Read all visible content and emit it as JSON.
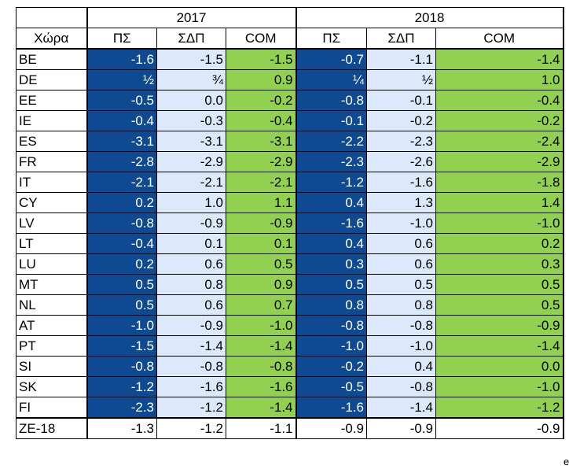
{
  "header": {
    "years": [
      "2017",
      "2018"
    ],
    "country_label": "Χώρα",
    "columns": [
      "ΠΣ",
      "ΣΔΠ",
      "COM",
      "ΠΣ",
      "ΣΔΠ",
      "COM"
    ]
  },
  "rows": [
    {
      "country": "BE",
      "values": [
        "-1.6",
        "-1.5",
        "-1.5",
        "-0.7",
        "-1.1",
        "-1.4"
      ]
    },
    {
      "country": "DE",
      "values": [
        "½",
        "¾",
        "0.9",
        "¼",
        "½",
        "1.0"
      ]
    },
    {
      "country": "EE",
      "values": [
        "-0.5",
        "0.0",
        "-0.2",
        "-0.8",
        "-0.1",
        "-0.4"
      ]
    },
    {
      "country": "IE",
      "values": [
        "-0.4",
        "-0.3",
        "-0.4",
        "-0.1",
        "-0.2",
        "-0.2"
      ]
    },
    {
      "country": "ES",
      "values": [
        "-3.1",
        "-3.1",
        "-3.1",
        "-2.2",
        "-2.3",
        "-2.4"
      ]
    },
    {
      "country": "FR",
      "values": [
        "-2.8",
        "-2.9",
        "-2.9",
        "-2.3",
        "-2.6",
        "-2.9"
      ]
    },
    {
      "country": "IT",
      "values": [
        "-2.1",
        "-2.1",
        "-2.1",
        "-1.2",
        "-1.6",
        "-1.8"
      ]
    },
    {
      "country": "CY",
      "values": [
        "0.2",
        "1.0",
        "1.1",
        "0.4",
        "1.3",
        "1.4"
      ]
    },
    {
      "country": "LV",
      "values": [
        "-0.8",
        "-0.9",
        "-0.9",
        "-1.6",
        "-1.0",
        "-1.0"
      ]
    },
    {
      "country": "LT",
      "values": [
        "-0.4",
        "0.1",
        "0.1",
        "0.4",
        "0.6",
        "0.2"
      ]
    },
    {
      "country": "LU",
      "values": [
        "0.2",
        "0.6",
        "0.5",
        "0.3",
        "0.6",
        "0.3"
      ]
    },
    {
      "country": "MT",
      "values": [
        "0.5",
        "0.8",
        "0.9",
        "0.5",
        "0.5",
        "0.5"
      ]
    },
    {
      "country": "NL",
      "values": [
        "0.5",
        "0.6",
        "0.7",
        "0.8",
        "0.8",
        "0.5"
      ]
    },
    {
      "country": "AT",
      "values": [
        "-1.0",
        "-0.9",
        "-1.0",
        "-0.8",
        "-0.8",
        "-0.9"
      ]
    },
    {
      "country": "PT",
      "values": [
        "-1.5",
        "-1.4",
        "-1.4",
        "-1.0",
        "-1.0",
        "-1.4"
      ]
    },
    {
      "country": "SI",
      "values": [
        "-0.8",
        "-0.8",
        "-0.8",
        "-0.2",
        "0.4",
        "0.0"
      ]
    },
    {
      "country": "SK",
      "values": [
        "-1.2",
        "-1.6",
        "-1.6",
        "-0.5",
        "-0.8",
        "-1.0"
      ]
    },
    {
      "country": "FI",
      "values": [
        "-2.3",
        "-1.2",
        "-1.4",
        "-1.6",
        "-1.4",
        "-1.2"
      ]
    }
  ],
  "total": {
    "country": "ZE-18",
    "values": [
      "-1.3",
      "-1.2",
      "-1.1",
      "-0.9",
      "-0.9",
      "-0.9"
    ]
  },
  "colors": {
    "ps": "#0e4a92",
    "sdp": "#dbe9fa",
    "com": "#92d050"
  },
  "stray_mark": "e"
}
